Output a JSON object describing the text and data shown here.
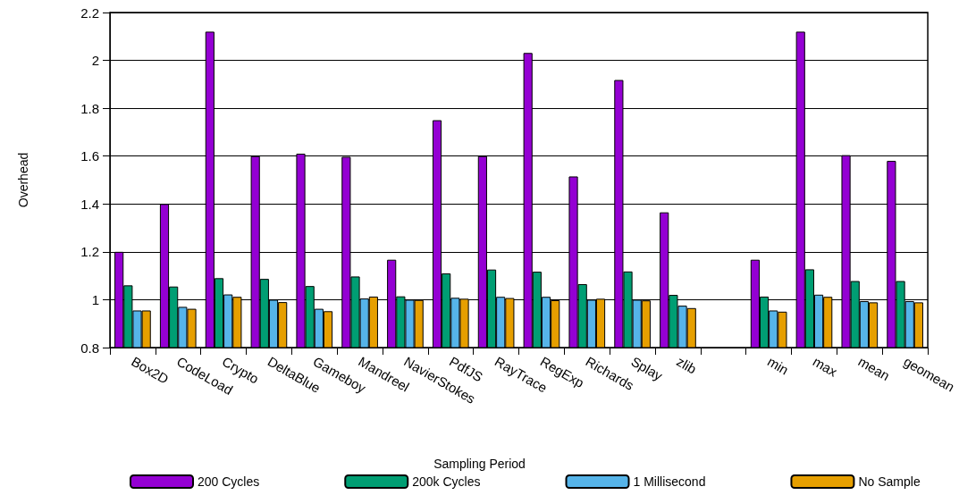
{
  "chart_data": {
    "type": "bar",
    "ylabel": "Overhead",
    "legend_title": "Sampling Period",
    "categories": [
      "Box2D",
      "CodeLoad",
      "Crypto",
      "DeltaBlue",
      "Gameboy",
      "Mandreel",
      "NavierStokes",
      "PdfJS",
      "RayTrace",
      "RegExp",
      "Richards",
      "Splay",
      "zlib",
      null,
      "min",
      "max",
      "mean",
      "geomean"
    ],
    "series": [
      {
        "name": "200 Cycles",
        "color": "#9400d3",
        "values": [
          1.2,
          1.4,
          2.12,
          1.6,
          1.61,
          1.597,
          1.167,
          1.75,
          1.6,
          2.031,
          1.515,
          1.918,
          1.365,
          null,
          1.167,
          2.12,
          1.604,
          1.58
        ]
      },
      {
        "name": "200k Cycles",
        "color": "#009e73",
        "values": [
          1.06,
          1.055,
          1.09,
          1.087,
          1.057,
          1.097,
          1.014,
          1.11,
          1.126,
          1.117,
          1.065,
          1.118,
          1.02,
          null,
          1.013,
          1.127,
          1.078,
          1.078
        ]
      },
      {
        "name": "1 Millisecond",
        "color": "#56b4e9",
        "values": [
          0.955,
          0.97,
          1.022,
          1.0,
          0.962,
          1.005,
          1.0,
          1.008,
          1.012,
          1.012,
          1.0,
          1.0,
          0.975,
          null,
          0.955,
          1.021,
          0.994,
          0.994
        ]
      },
      {
        "name": "No Sample",
        "color": "#e69f00",
        "values": [
          0.955,
          0.962,
          1.012,
          0.99,
          0.952,
          1.013,
          0.999,
          1.004,
          1.007,
          0.998,
          1.004,
          0.997,
          0.965,
          null,
          0.95,
          1.012,
          0.989,
          0.989
        ]
      }
    ],
    "ylim": [
      0.8,
      2.2
    ],
    "yticks": [
      0.8,
      1,
      1.2,
      1.4,
      1.6,
      1.8,
      2,
      2.2
    ],
    "grid": "y",
    "legend": "bottom"
  }
}
